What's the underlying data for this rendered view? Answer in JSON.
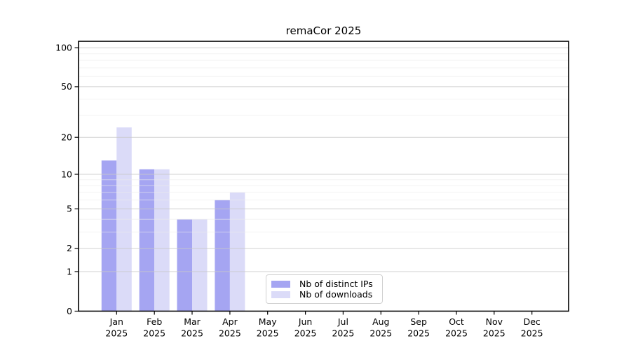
{
  "figure": {
    "background": "#ffffff"
  },
  "chart_data": {
    "type": "bar",
    "title": "remaCor 2025",
    "categories": [
      "Jan",
      "Feb",
      "Mar",
      "Apr",
      "May",
      "Jun",
      "Jul",
      "Aug",
      "Sep",
      "Oct",
      "Nov",
      "Dec"
    ],
    "year_label": "2025",
    "series": [
      {
        "name": "Nb of distinct IPs",
        "color": "#a5a5f2",
        "values": [
          13,
          11,
          4,
          6,
          0,
          0,
          0,
          0,
          0,
          0,
          0,
          0
        ]
      },
      {
        "name": "Nb of downloads",
        "color": "#dbdbf8",
        "values": [
          24,
          11,
          4,
          7,
          0,
          0,
          0,
          0,
          0,
          0,
          0,
          0
        ]
      }
    ],
    "xlabel": "",
    "ylabel": "",
    "yscale": "log1p",
    "ytick_labels": [
      0,
      1,
      2,
      5,
      10,
      20,
      50,
      100
    ],
    "minor_yticks": [
      3,
      4,
      6,
      7,
      8,
      9,
      30,
      40,
      60,
      70,
      80,
      90
    ],
    "ylim": [
      0,
      112
    ],
    "grid": true,
    "grid_over_bars": true,
    "legend_position": "lower center",
    "colors": {
      "axis": "#000000",
      "grid_major": "#c8c8c8",
      "grid_minor": "#ebebeb",
      "text": "#000000"
    }
  }
}
